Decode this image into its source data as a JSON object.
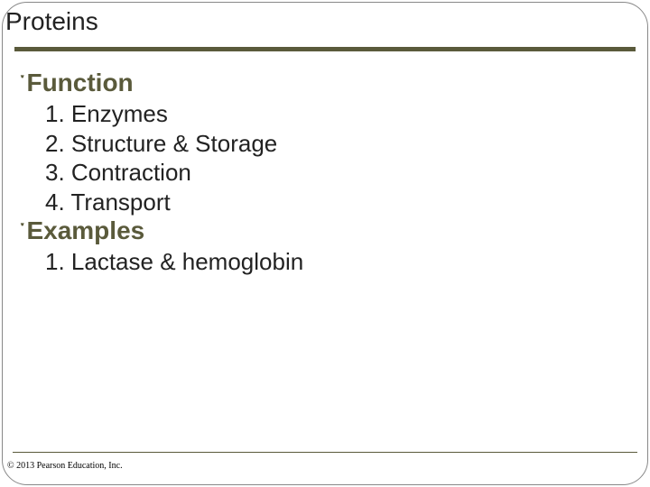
{
  "slide": {
    "title": "Proteins",
    "title_color": "#222222",
    "title_fontsize": 28,
    "underline_color": "#5a5a3b",
    "bullet_glyph": "་",
    "bullet_color": "#5a5a3b",
    "heading_color": "#5a5a3b",
    "heading_fontsize": 28,
    "item_color": "#222222",
    "item_fontsize": 26,
    "sections": [
      {
        "heading": "Function",
        "items": [
          "1. Enzymes",
          "2. Structure & Storage",
          "3. Contraction",
          "4. Transport"
        ]
      },
      {
        "heading": "Examples",
        "items": [
          "1. Lactase & hemoglobin"
        ]
      }
    ],
    "copyright": "© 2013 Pearson Education, Inc.",
    "background_color": "#ffffff",
    "frame_border_color": "#888888",
    "frame_radius": 28
  }
}
